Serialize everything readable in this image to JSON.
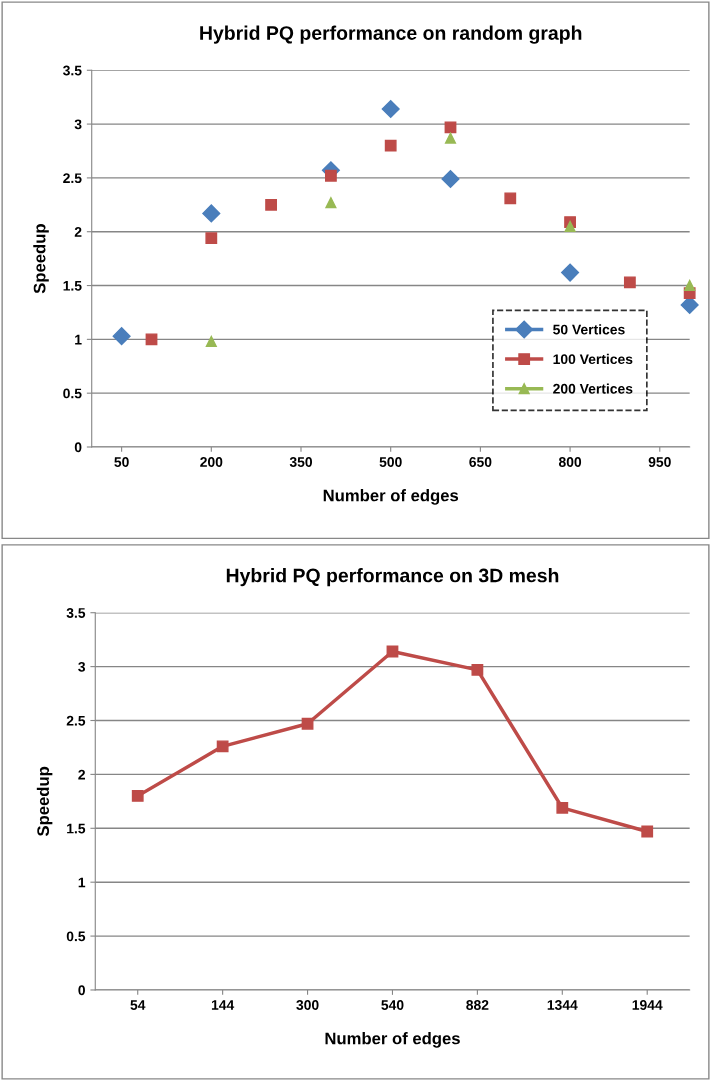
{
  "chart_data": [
    {
      "type": "scatter",
      "title": "Hybrid PQ performance on random graph",
      "xlabel": "Number of edges",
      "ylabel": "Speedup",
      "xlim": [
        0,
        1000
      ],
      "xticks": [
        50,
        200,
        350,
        500,
        650,
        800,
        950
      ],
      "ylim": [
        0,
        3.5
      ],
      "yticks": [
        0,
        0.5,
        1,
        1.5,
        2,
        2.5,
        3,
        3.5
      ],
      "grid": "y",
      "legend": "center right",
      "series": [
        {
          "name": "50 Vertices",
          "color": "#4a7ebb",
          "marker": "diamond",
          "x": [
            50,
            200,
            400,
            500,
            600,
            800,
            1000
          ],
          "values": [
            1.03,
            2.17,
            2.57,
            3.14,
            2.49,
            1.62,
            1.32
          ]
        },
        {
          "name": "100 Vertices",
          "color": "#be4b48",
          "marker": "square",
          "x": [
            100,
            200,
            300,
            400,
            500,
            600,
            700,
            800,
            900,
            1000
          ],
          "values": [
            1.0,
            1.94,
            2.25,
            2.52,
            2.8,
            2.97,
            2.31,
            2.09,
            1.53,
            1.43
          ]
        },
        {
          "name": "200 Vertices",
          "color": "#98b954",
          "marker": "triangle",
          "x": [
            200,
            400,
            600,
            800,
            1000
          ],
          "values": [
            0.98,
            2.27,
            2.87,
            2.05,
            1.5
          ]
        }
      ]
    },
    {
      "type": "line",
      "title": "Hybrid PQ performance on 3D mesh",
      "xlabel": "Number of edges",
      "ylabel": "Speedup",
      "categories": [
        "54",
        "144",
        "300",
        "540",
        "882",
        "1344",
        "1944"
      ],
      "ylim": [
        0,
        3.5
      ],
      "yticks": [
        0,
        0.5,
        1,
        1.5,
        2,
        2.5,
        3,
        3.5
      ],
      "grid": "y",
      "legend": false,
      "series": [
        {
          "color": "#be4b48",
          "marker": "square",
          "values": [
            1.8,
            2.26,
            2.47,
            3.14,
            2.97,
            1.69,
            1.47
          ]
        }
      ]
    }
  ]
}
